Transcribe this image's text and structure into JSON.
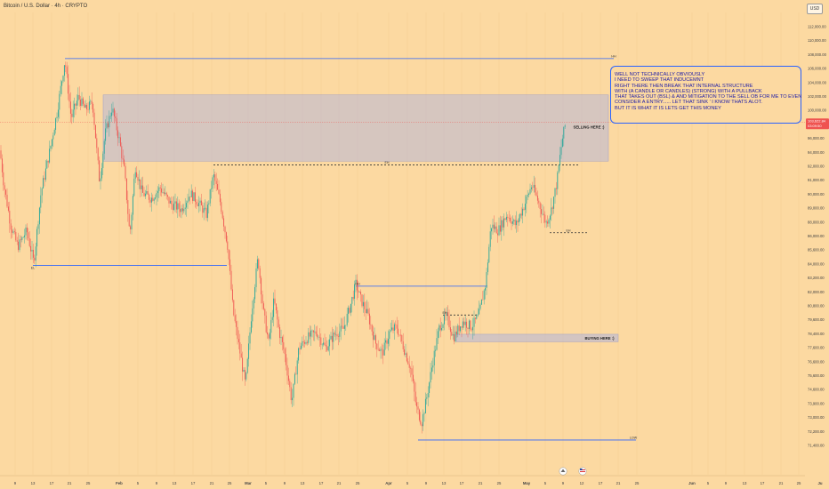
{
  "header": {
    "title": "Bitcoin / U.S. Dollar · 4h · CRYPTO",
    "currency": "USD"
  },
  "price_scale": {
    "ticks": [
      "112,000.00",
      "110,000.00",
      "108,000.00",
      "106,000.00",
      "104,000.00",
      "102,000.00",
      "100,000.00",
      "98,000.00",
      "96,000.00",
      "94,000.00",
      "92,000.00",
      "91,000.00",
      "90,000.00",
      "89,000.00",
      "88,000.00",
      "86,000.00",
      "85,600.00",
      "84,000.00",
      "83,200.00",
      "82,000.00",
      "80,800.00",
      "79,600.00",
      "78,400.00",
      "77,600.00",
      "76,600.00",
      "75,600.00",
      "74,600.00",
      "73,900.00",
      "73,000.00",
      "72,200.00",
      "71,400.00"
    ],
    "current_price": "103,622.84",
    "countdown": "03:09:50"
  },
  "time_axis": [
    {
      "label": "9",
      "x": 17
    },
    {
      "label": "13",
      "x": 37
    },
    {
      "label": "17",
      "x": 58
    },
    {
      "label": "21",
      "x": 78
    },
    {
      "label": "25",
      "x": 99
    },
    {
      "label": "Feb",
      "x": 134
    },
    {
      "label": "5",
      "x": 155
    },
    {
      "label": "9",
      "x": 176
    },
    {
      "label": "13",
      "x": 196
    },
    {
      "label": "17",
      "x": 217
    },
    {
      "label": "21",
      "x": 238
    },
    {
      "label": "25",
      "x": 258
    },
    {
      "label": "Mar",
      "x": 279
    },
    {
      "label": "5",
      "x": 299
    },
    {
      "label": "9",
      "x": 320
    },
    {
      "label": "13",
      "x": 340
    },
    {
      "label": "17",
      "x": 361
    },
    {
      "label": "21",
      "x": 381
    },
    {
      "label": "25",
      "x": 402
    },
    {
      "label": "Apr",
      "x": 437
    },
    {
      "label": "5",
      "x": 458
    },
    {
      "label": "9",
      "x": 479
    },
    {
      "label": "13",
      "x": 499
    },
    {
      "label": "17",
      "x": 519
    },
    {
      "label": "21",
      "x": 540
    },
    {
      "label": "25",
      "x": 561
    },
    {
      "label": "May",
      "x": 592
    },
    {
      "label": "5",
      "x": 613
    },
    {
      "label": "9",
      "x": 633
    },
    {
      "label": "12",
      "x": 654
    },
    {
      "label": "17",
      "x": 675
    },
    {
      "label": "21",
      "x": 695
    },
    {
      "label": "25",
      "x": 716
    },
    {
      "label": "Jun",
      "x": 778
    },
    {
      "label": "5",
      "x": 796
    },
    {
      "label": "9",
      "x": 816
    },
    {
      "label": "13",
      "x": 837
    },
    {
      "label": "17",
      "x": 857
    },
    {
      "label": "21",
      "x": 878
    },
    {
      "label": "25",
      "x": 898
    },
    {
      "label": "Ju",
      "x": 922
    }
  ],
  "annotations": {
    "sell_zone": {
      "label": "SELLING HERE :)"
    },
    "buy_zone": {
      "label": "BUYING HERE :)"
    },
    "line_tags": [
      "HH",
      "EH",
      "HH",
      "EH",
      "EH",
      "EL",
      "LOW"
    ]
  },
  "note": {
    "lines": [
      "WELL NOT TECHNICALLY OBVIOUSLY",
      "I NEED TO SWEEP THAT INDUCEMNT",
      "RIGHT THERE THEN BREAK THAT INTERNAL STRUCTURE",
      "WITH (A CANDLE OR CANDLES) (STRONG) WITH A PULLBACK",
      "THAT TAKES OUT (BSL) & AND MITIGATION TO THE SELL OB FOR ME TO EVEN",
      "CONSIDER A ENTRY...... LET THAT SINK ' I KNOW THATS ALOT.",
      "BUT IT IS WHAT IT IS LETS GET THIS MONEY"
    ]
  },
  "chart_data": {
    "type": "candlestick",
    "symbol": "Bitcoin / U.S. Dollar",
    "interval": "4h",
    "ylim": [
      71000,
      113000
    ],
    "anchors": [
      {
        "x": 0,
        "price": 101000
      },
      {
        "x": 4,
        "price": 98000
      },
      {
        "x": 12,
        "price": 94000
      },
      {
        "x": 20,
        "price": 92000
      },
      {
        "x": 30,
        "price": 93500
      },
      {
        "x": 38,
        "price": 90500
      },
      {
        "x": 46,
        "price": 97000
      },
      {
        "x": 56,
        "price": 101000
      },
      {
        "x": 64,
        "price": 104500
      },
      {
        "x": 73,
        "price": 109500
      },
      {
        "x": 80,
        "price": 104000
      },
      {
        "x": 88,
        "price": 106000
      },
      {
        "x": 96,
        "price": 104800
      },
      {
        "x": 104,
        "price": 105500
      },
      {
        "x": 112,
        "price": 98000
      },
      {
        "x": 118,
        "price": 102500
      },
      {
        "x": 126,
        "price": 105000
      },
      {
        "x": 134,
        "price": 102000
      },
      {
        "x": 140,
        "price": 99000
      },
      {
        "x": 146,
        "price": 93000
      },
      {
        "x": 152,
        "price": 99500
      },
      {
        "x": 160,
        "price": 97000
      },
      {
        "x": 170,
        "price": 96500
      },
      {
        "x": 180,
        "price": 97500
      },
      {
        "x": 192,
        "price": 96000
      },
      {
        "x": 204,
        "price": 95500
      },
      {
        "x": 214,
        "price": 97000
      },
      {
        "x": 224,
        "price": 96000
      },
      {
        "x": 232,
        "price": 95000
      },
      {
        "x": 240,
        "price": 98700
      },
      {
        "x": 248,
        "price": 96000
      },
      {
        "x": 256,
        "price": 92000
      },
      {
        "x": 262,
        "price": 86000
      },
      {
        "x": 270,
        "price": 82000
      },
      {
        "x": 276,
        "price": 79000
      },
      {
        "x": 283,
        "price": 86000
      },
      {
        "x": 290,
        "price": 91000
      },
      {
        "x": 296,
        "price": 86000
      },
      {
        "x": 302,
        "price": 83000
      },
      {
        "x": 308,
        "price": 87000
      },
      {
        "x": 314,
        "price": 84000
      },
      {
        "x": 320,
        "price": 82000
      },
      {
        "x": 328,
        "price": 77500
      },
      {
        "x": 336,
        "price": 82500
      },
      {
        "x": 346,
        "price": 83500
      },
      {
        "x": 356,
        "price": 84000
      },
      {
        "x": 366,
        "price": 82500
      },
      {
        "x": 376,
        "price": 83800
      },
      {
        "x": 386,
        "price": 84300
      },
      {
        "x": 394,
        "price": 86500
      },
      {
        "x": 400,
        "price": 88500
      },
      {
        "x": 406,
        "price": 87000
      },
      {
        "x": 414,
        "price": 85500
      },
      {
        "x": 422,
        "price": 83000
      },
      {
        "x": 430,
        "price": 82000
      },
      {
        "x": 438,
        "price": 84000
      },
      {
        "x": 446,
        "price": 84500
      },
      {
        "x": 454,
        "price": 82500
      },
      {
        "x": 462,
        "price": 80500
      },
      {
        "x": 468,
        "price": 77000
      },
      {
        "x": 474,
        "price": 75500
      },
      {
        "x": 480,
        "price": 78000
      },
      {
        "x": 486,
        "price": 81000
      },
      {
        "x": 494,
        "price": 84500
      },
      {
        "x": 502,
        "price": 85500
      },
      {
        "x": 510,
        "price": 83500
      },
      {
        "x": 520,
        "price": 85000
      },
      {
        "x": 530,
        "price": 84500
      },
      {
        "x": 538,
        "price": 85500
      },
      {
        "x": 546,
        "price": 88500
      },
      {
        "x": 552,
        "price": 94000
      },
      {
        "x": 560,
        "price": 93500
      },
      {
        "x": 570,
        "price": 95000
      },
      {
        "x": 580,
        "price": 94000
      },
      {
        "x": 590,
        "price": 96000
      },
      {
        "x": 598,
        "price": 97800
      },
      {
        "x": 606,
        "price": 96000
      },
      {
        "x": 614,
        "price": 94200
      },
      {
        "x": 620,
        "price": 95500
      },
      {
        "x": 626,
        "price": 98000
      },
      {
        "x": 632,
        "price": 102000
      },
      {
        "x": 636,
        "price": 103622.84
      }
    ]
  },
  "colors": {
    "background": "#fcd9a1",
    "up_candle": "#26a69a",
    "down_candle": "#ef5350",
    "zone_fill": "#b7b7d9",
    "level_line": "#2962ff",
    "price_label": "#ef5350"
  }
}
